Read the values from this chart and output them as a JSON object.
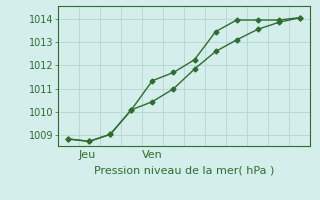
{
  "line1_x": [
    0,
    1,
    2,
    3,
    4,
    5,
    6,
    7,
    8,
    9,
    10,
    11
  ],
  "line1_y": [
    1008.85,
    1008.75,
    1009.05,
    1010.1,
    1011.35,
    1011.7,
    1012.25,
    1013.45,
    1013.95,
    1013.95,
    1013.95,
    1014.05
  ],
  "line2_x": [
    0,
    1,
    2,
    3,
    4,
    5,
    6,
    7,
    8,
    9,
    10,
    11
  ],
  "line2_y": [
    1008.85,
    1008.75,
    1009.05,
    1010.1,
    1010.45,
    1011.0,
    1011.85,
    1012.6,
    1013.1,
    1013.55,
    1013.85,
    1014.05
  ],
  "line_color": "#2d6e2d",
  "marker": "D",
  "markersize": 2.5,
  "linewidth": 1.0,
  "ylim": [
    1008.55,
    1014.55
  ],
  "yticks": [
    1009,
    1010,
    1011,
    1012,
    1013,
    1014
  ],
  "xlim": [
    -0.5,
    11.5
  ],
  "jeu_x": 0.5,
  "ven_x": 3.5,
  "xtick_positions": [
    0.5,
    3.5
  ],
  "xtick_labels": [
    "Jeu",
    "Ven"
  ],
  "xlabel": "Pression niveau de la mer( hPa )",
  "bg_color": "#d4eeeb",
  "grid_color": "#b8d8d4",
  "axis_color": "#2d6e2d",
  "text_color": "#2d6e2d",
  "xlabel_fontsize": 8,
  "ylabel_fontsize": 7,
  "tick_fontsize": 7
}
